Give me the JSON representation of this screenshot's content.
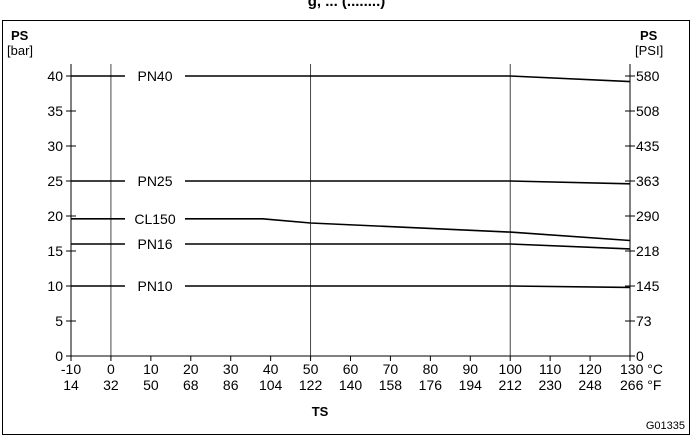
{
  "page": {
    "title_fragment": "g, ... (........)",
    "figure_code": "G01335"
  },
  "chart_data": {
    "type": "line",
    "title": "",
    "xlabel": "TS",
    "x_unit_primary": "°C",
    "x_unit_secondary": "°F",
    "x_ticks_c": [
      "-10",
      "0",
      "10",
      "20",
      "30",
      "40",
      "50",
      "60",
      "70",
      "80",
      "90",
      "100",
      "110",
      "120",
      "130"
    ],
    "x_ticks_f": [
      "14",
      "32",
      "50",
      "68",
      "86",
      "104",
      "122",
      "140",
      "158",
      "176",
      "194",
      "212",
      "230",
      "248",
      "266"
    ],
    "xlim": [
      -10,
      130
    ],
    "ylabel_left": "PS",
    "yunit_left": "[bar]",
    "ylabel_right": "PS",
    "yunit_right": "[PSI]",
    "y_ticks_left": [
      "0",
      "5",
      "10",
      "15",
      "20",
      "25",
      "30",
      "35",
      "40"
    ],
    "y_ticks_right": [
      "0",
      "73",
      "145",
      "218",
      "290",
      "363",
      "435",
      "508",
      "580"
    ],
    "ylim": [
      0,
      40
    ],
    "grid": {
      "vertical_at_c": [
        0,
        50,
        100
      ],
      "horizontal": false
    },
    "series": [
      {
        "name": "PN40",
        "x": [
          -10,
          100,
          130
        ],
        "y": [
          40,
          40,
          39.2
        ]
      },
      {
        "name": "PN25",
        "x": [
          -10,
          100,
          130
        ],
        "y": [
          25,
          25,
          24.6
        ]
      },
      {
        "name": "CL150",
        "x": [
          -10,
          38,
          50,
          100,
          130
        ],
        "y": [
          19.6,
          19.6,
          19.0,
          17.7,
          16.5
        ]
      },
      {
        "name": "PN16",
        "x": [
          -10,
          100,
          130
        ],
        "y": [
          16,
          16,
          15.3
        ]
      },
      {
        "name": "PN10",
        "x": [
          -10,
          100,
          130
        ],
        "y": [
          10,
          10,
          9.8
        ]
      }
    ],
    "series_labels": [
      "PN40",
      "PN25",
      "CL150",
      "PN16",
      "PN10"
    ]
  }
}
